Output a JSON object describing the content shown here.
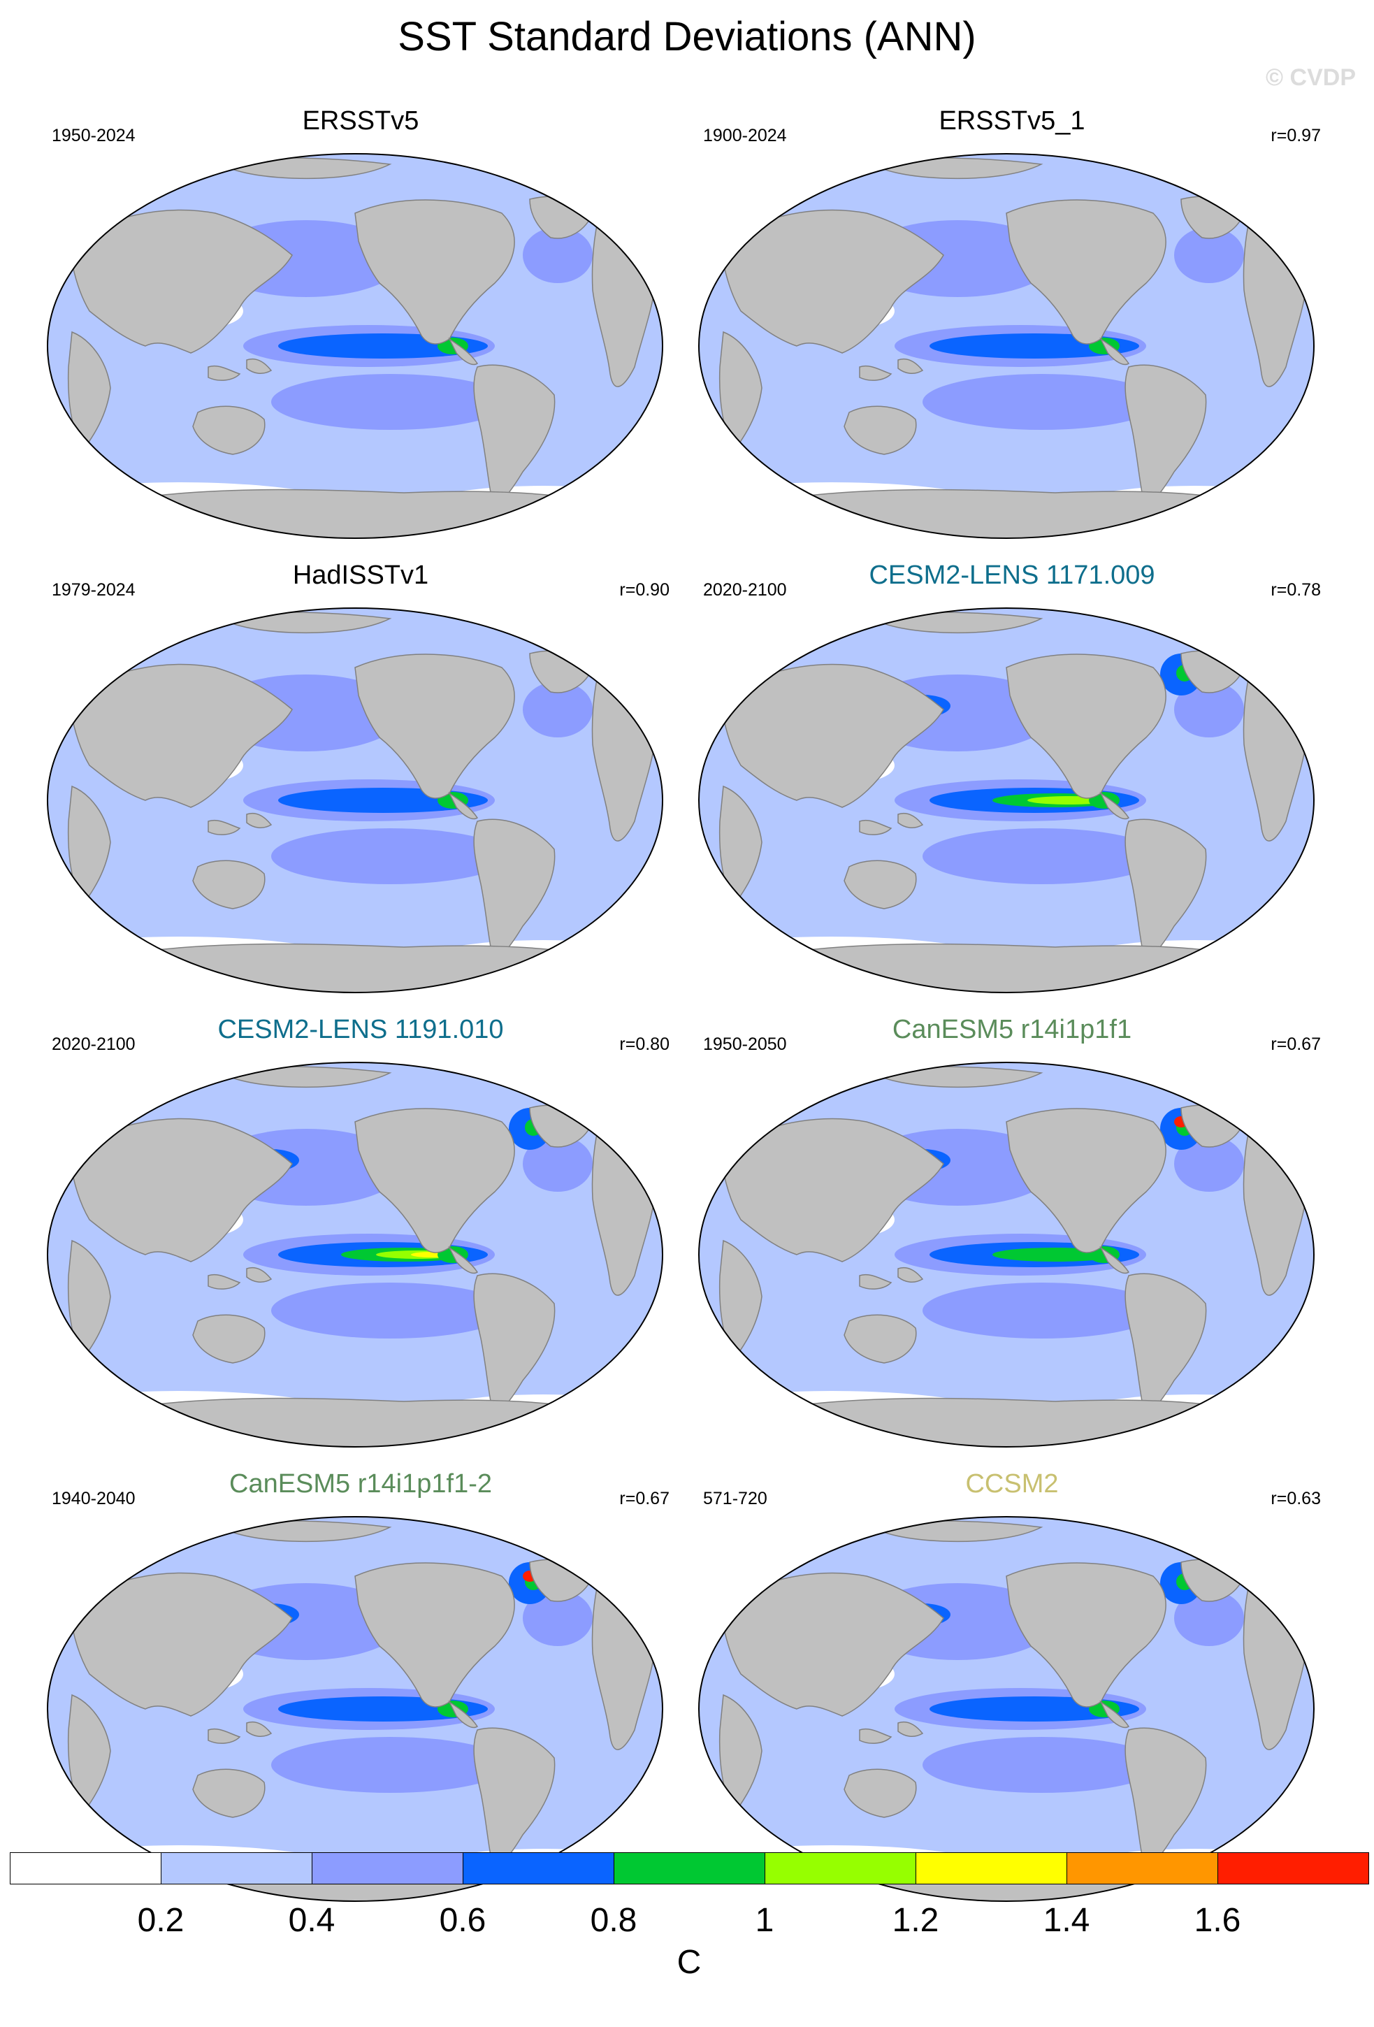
{
  "title": "SST Standard Deviations (ANN)",
  "watermark": "© CVDP",
  "colors": {
    "land": "#c0c0c0",
    "land_edge": "#808080",
    "ocean_base": "#b4c8ff",
    "ocean_mid": "#8c9cff",
    "ocean_high": "#0a64ff",
    "green": "#00c832",
    "lime": "#96ff00",
    "yellow": "#ffff00",
    "orange": "#ff9600",
    "red": "#ff1e00",
    "blackTitle": "#000000",
    "blueTitle": "#0e6e8c",
    "greenTitle": "#5a8c5a",
    "khakiTitle": "#c8c070"
  },
  "panels": [
    {
      "title": "ERSSTv5",
      "period": "1950-2024",
      "corr": "",
      "title_color": "#000000"
    },
    {
      "title": "ERSSTv5_1",
      "period": "1900-2024",
      "corr": "r=0.97",
      "title_color": "#000000"
    },
    {
      "title": "HadISSTv1",
      "period": "1979-2024",
      "corr": "r=0.90",
      "title_color": "#000000"
    },
    {
      "title": "CESM2-LENS 1171.009",
      "period": "2020-2100",
      "corr": "r=0.78",
      "title_color": "#0e6e8c"
    },
    {
      "title": "CESM2-LENS 1191.010",
      "period": "2020-2100",
      "corr": "r=0.80",
      "title_color": "#0e6e8c"
    },
    {
      "title": "CanESM5 r14i1p1f1",
      "period": "1950-2050",
      "corr": "r=0.67",
      "title_color": "#5a8c5a"
    },
    {
      "title": "CanESM5 r14i1p1f1-2",
      "period": "1940-2040",
      "corr": "r=0.67",
      "title_color": "#5a8c5a"
    },
    {
      "title": "CCSM2",
      "period": "571-720",
      "corr": "r=0.63",
      "title_color": "#c8c070"
    }
  ],
  "colorbar": {
    "unit": "C",
    "labels": [
      "0.2",
      "0.4",
      "0.6",
      "0.8",
      "1",
      "1.2",
      "1.4",
      "1.6"
    ],
    "colors": [
      "#ffffff",
      "#b4c8ff",
      "#8c9cff",
      "#0a64ff",
      "#00c832",
      "#96ff00",
      "#ffff00",
      "#ff9600",
      "#ff1e00"
    ]
  }
}
